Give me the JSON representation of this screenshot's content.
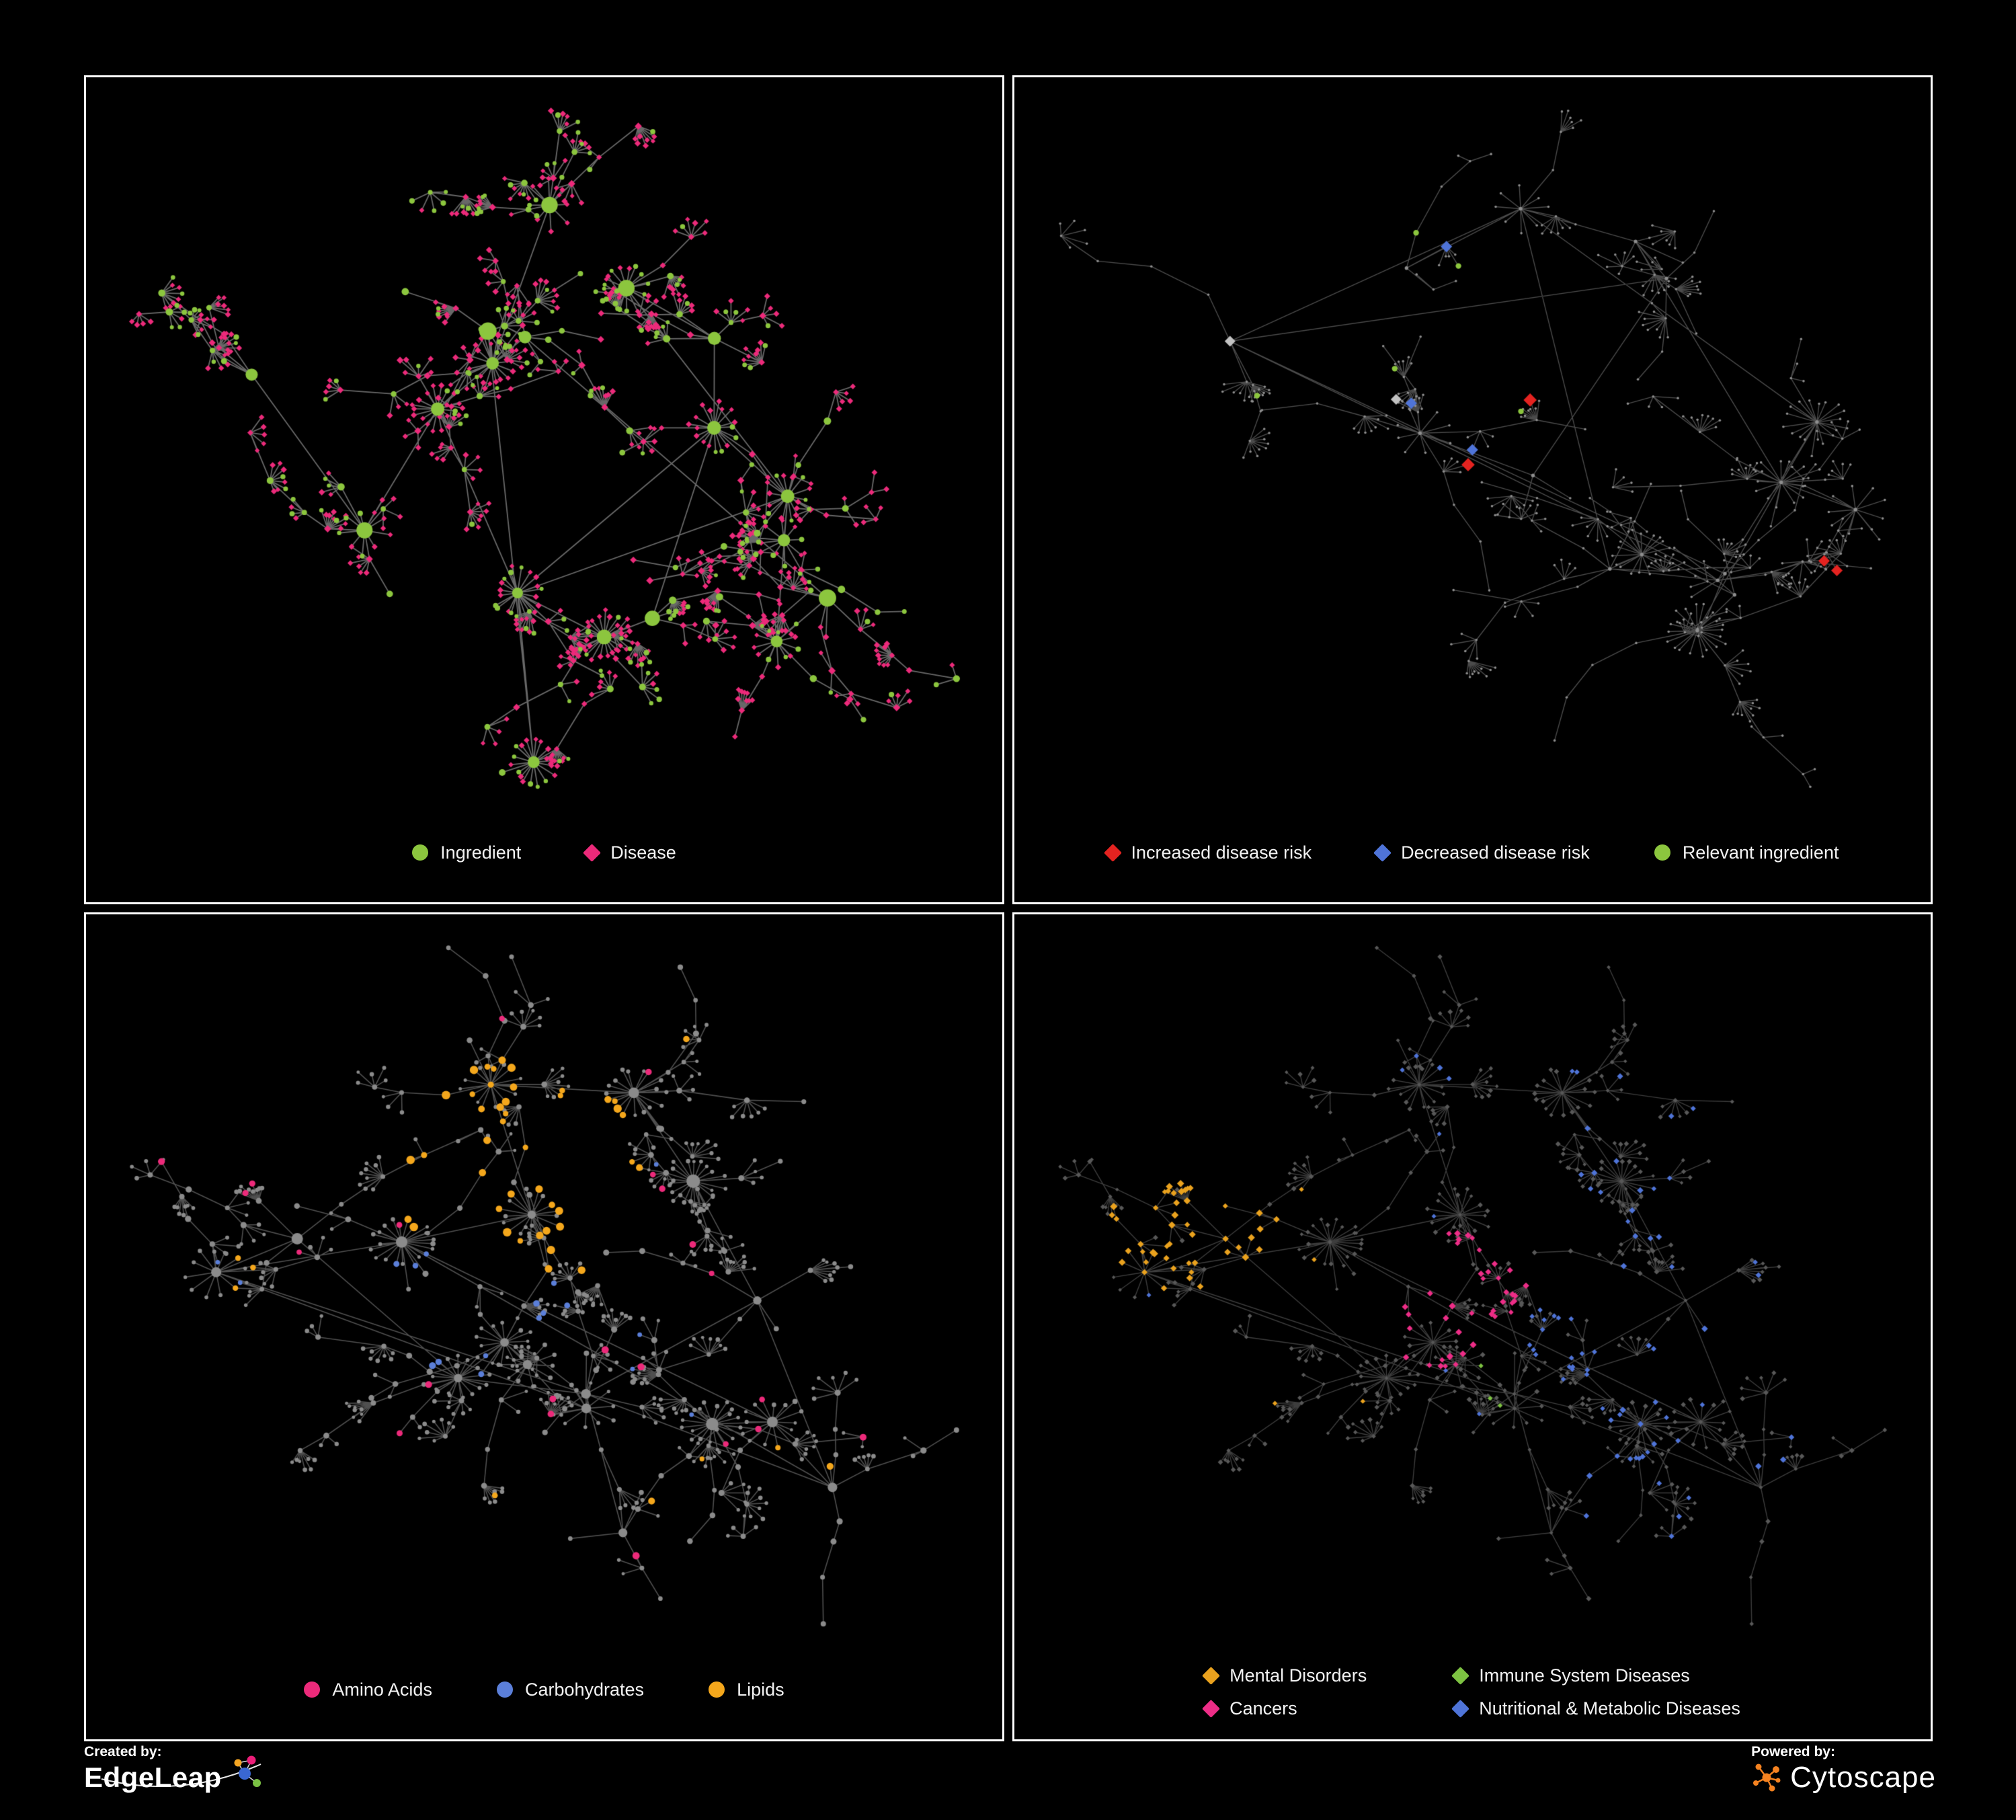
{
  "panels": [
    {
      "name": "ingredient-disease-network",
      "legend": {
        "columns": 1,
        "items": [
          {
            "label": "Ingredient",
            "shape": "circle",
            "color": "#8cc63e"
          },
          {
            "label": "Disease",
            "shape": "diamond",
            "color": "#ec2a7a"
          }
        ]
      }
    },
    {
      "name": "disease-risk-network",
      "legend": {
        "columns": 1,
        "items": [
          {
            "label": "Increased disease risk",
            "shape": "diamond",
            "color": "#e42320"
          },
          {
            "label": "Decreased disease risk",
            "shape": "diamond",
            "color": "#4f74d8"
          },
          {
            "label": "Relevant ingredient",
            "shape": "circle",
            "color": "#8cc63e"
          }
        ]
      }
    },
    {
      "name": "macronutrient-network",
      "legend": {
        "columns": 1,
        "items": [
          {
            "label": "Amino Acids",
            "shape": "circle",
            "color": "#ec2a7a"
          },
          {
            "label": "Carbohydrates",
            "shape": "circle",
            "color": "#5b7fd9"
          },
          {
            "label": "Lipids",
            "shape": "circle",
            "color": "#f4a71c"
          }
        ]
      }
    },
    {
      "name": "disease-category-network",
      "legend": {
        "columns": 2,
        "items": [
          {
            "label": "Mental Disorders",
            "shape": "diamond",
            "color": "#eaa21e"
          },
          {
            "label": "Immune System Diseases",
            "shape": "diamond",
            "color": "#7dc242"
          },
          {
            "label": "Cancers",
            "shape": "diamond",
            "color": "#ed2d87"
          },
          {
            "label": "Nutritional & Metabolic Diseases",
            "shape": "diamond",
            "color": "#4f74d8"
          }
        ]
      }
    }
  ],
  "footer": {
    "created_by_label": "Created by:",
    "created_by_name": "EdgeLeap",
    "powered_by_label": "Powered by:",
    "powered_by_name": "Cytoscape"
  },
  "theme": {
    "background": "#000000",
    "panel_border": "#ffffff",
    "edge_gray": "#a0a0a0",
    "plain_node_gray": "#8e8e8e",
    "dark_node_gray": "#585858",
    "cytoscape_orange": "#f58220"
  }
}
